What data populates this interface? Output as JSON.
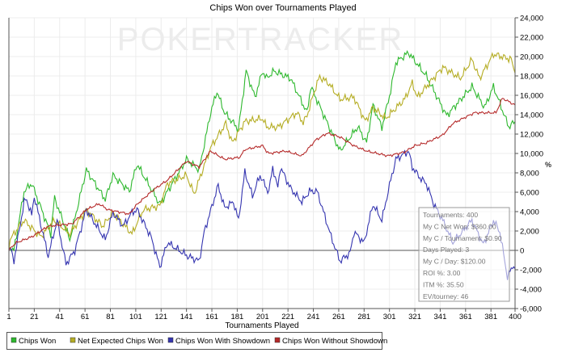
{
  "chart_data": {
    "type": "line",
    "title": "Chips Won over Tournaments Played",
    "xlabel": "Tournaments Played",
    "ylabel": "%",
    "watermark": "POKERTRACKER",
    "xlim": [
      1,
      400
    ],
    "ylim": [
      -6000,
      24000
    ],
    "x_ticks": [
      1,
      21,
      41,
      61,
      81,
      101,
      121,
      141,
      161,
      181,
      201,
      221,
      241,
      261,
      281,
      301,
      321,
      341,
      361,
      381,
      400
    ],
    "y_ticks": [
      -6000,
      -4000,
      -2000,
      0,
      2000,
      4000,
      6000,
      8000,
      10000,
      12000,
      14000,
      16000,
      18000,
      20000,
      22000,
      24000
    ],
    "y_tick_labels": [
      "-6,000",
      "-4,000",
      "-2,000",
      "0",
      "2,000",
      "4,000",
      "6,000",
      "8,000",
      "10,000",
      "12,000",
      "14,000",
      "16,000",
      "18,000",
      "20,000",
      "22,000",
      "24,000"
    ],
    "grid": true,
    "legend_position": "bottom-left",
    "series": [
      {
        "name": "Chips Won",
        "color": "#2eb82e",
        "points": [
          [
            1,
            0
          ],
          [
            2,
            250
          ],
          [
            5,
            0
          ],
          [
            13,
            6100
          ],
          [
            19,
            6900
          ],
          [
            34,
            1700
          ],
          [
            37,
            5400
          ],
          [
            49,
            1100
          ],
          [
            62,
            8300
          ],
          [
            77,
            5250
          ],
          [
            83,
            7750
          ],
          [
            96,
            6100
          ],
          [
            102,
            8900
          ],
          [
            120,
            4750
          ],
          [
            141,
            9400
          ],
          [
            151,
            8300
          ],
          [
            160,
            14200
          ],
          [
            165,
            16400
          ],
          [
            171,
            14200
          ],
          [
            182,
            12500
          ],
          [
            188,
            18500
          ],
          [
            195,
            15800
          ],
          [
            201,
            18500
          ],
          [
            204,
            17750
          ],
          [
            210,
            18500
          ],
          [
            223,
            17750
          ],
          [
            236,
            14200
          ],
          [
            239,
            16900
          ],
          [
            262,
            10250
          ],
          [
            276,
            12750
          ],
          [
            283,
            11100
          ],
          [
            288,
            15000
          ],
          [
            295,
            12660
          ],
          [
            302,
            16500
          ],
          [
            306,
            19400
          ],
          [
            316,
            20400
          ],
          [
            330,
            18000
          ],
          [
            346,
            13900
          ],
          [
            366,
            16900
          ],
          [
            376,
            14750
          ],
          [
            383,
            16900
          ],
          [
            395,
            12750
          ],
          [
            400,
            13300
          ]
        ]
      },
      {
        "name": "Net Expected Chips Won",
        "color": "#b5ad24",
        "points": [
          [
            1,
            0
          ],
          [
            2,
            1100
          ],
          [
            9,
            2500
          ],
          [
            13,
            3100
          ],
          [
            26,
            1400
          ],
          [
            37,
            3100
          ],
          [
            49,
            1700
          ],
          [
            62,
            4200
          ],
          [
            75,
            2500
          ],
          [
            83,
            3900
          ],
          [
            98,
            1700
          ],
          [
            107,
            4200
          ],
          [
            120,
            4600
          ],
          [
            126,
            6900
          ],
          [
            141,
            7750
          ],
          [
            147,
            5800
          ],
          [
            160,
            10600
          ],
          [
            172,
            13100
          ],
          [
            177,
            11100
          ],
          [
            187,
            13300
          ],
          [
            201,
            13600
          ],
          [
            204,
            12750
          ],
          [
            213,
            12700
          ],
          [
            228,
            14200
          ],
          [
            233,
            13200
          ],
          [
            236,
            13900
          ],
          [
            243,
            16900
          ],
          [
            246,
            17900
          ],
          [
            253,
            17250
          ],
          [
            262,
            15600
          ],
          [
            273,
            15800
          ],
          [
            282,
            13300
          ],
          [
            288,
            14750
          ],
          [
            298,
            13600
          ],
          [
            313,
            15600
          ],
          [
            319,
            17250
          ],
          [
            323,
            15800
          ],
          [
            343,
            18900
          ],
          [
            357,
            17750
          ],
          [
            366,
            19700
          ],
          [
            372,
            17750
          ],
          [
            383,
            20250
          ],
          [
            397,
            19700
          ],
          [
            400,
            18300
          ]
        ]
      },
      {
        "name": "Chips Won With Showdown",
        "color": "#3535b0",
        "points": [
          [
            1,
            0
          ],
          [
            2,
            250
          ],
          [
            5,
            -1100
          ],
          [
            13,
            5000
          ],
          [
            15,
            5250
          ],
          [
            19,
            3600
          ],
          [
            21,
            5600
          ],
          [
            32,
            -600
          ],
          [
            39,
            3100
          ],
          [
            46,
            -1400
          ],
          [
            53,
            0
          ],
          [
            62,
            4200
          ],
          [
            77,
            1100
          ],
          [
            83,
            3900
          ],
          [
            91,
            2500
          ],
          [
            98,
            3900
          ],
          [
            102,
            4200
          ],
          [
            113,
            1400
          ],
          [
            120,
            -1700
          ],
          [
            126,
            800
          ],
          [
            142,
            -600
          ],
          [
            151,
            -1100
          ],
          [
            155,
            1900
          ],
          [
            166,
            6700
          ],
          [
            171,
            4400
          ],
          [
            178,
            5000
          ],
          [
            182,
            3100
          ],
          [
            187,
            8100
          ],
          [
            193,
            5600
          ],
          [
            199,
            7750
          ],
          [
            204,
            6400
          ],
          [
            206,
            6100
          ],
          [
            209,
            8600
          ],
          [
            213,
            6400
          ],
          [
            215,
            8600
          ],
          [
            223,
            6400
          ],
          [
            232,
            5000
          ],
          [
            238,
            6100
          ],
          [
            244,
            6100
          ],
          [
            255,
            1400
          ],
          [
            262,
            -1100
          ],
          [
            270,
            -250
          ],
          [
            273,
            1900
          ],
          [
            281,
            800
          ],
          [
            288,
            4750
          ],
          [
            295,
            3100
          ],
          [
            301,
            6700
          ],
          [
            306,
            9400
          ],
          [
            316,
            10250
          ],
          [
            319,
            8600
          ],
          [
            325,
            7500
          ],
          [
            330,
            6900
          ],
          [
            336,
            4750
          ],
          [
            343,
            3100
          ],
          [
            351,
            800
          ],
          [
            366,
            3100
          ],
          [
            375,
            600
          ],
          [
            383,
            3100
          ],
          [
            388,
            1900
          ],
          [
            394,
            -2750
          ],
          [
            399,
            -1400
          ],
          [
            400,
            -1900
          ]
        ]
      },
      {
        "name": "Chips Won Without Showdown",
        "color": "#b52a2a",
        "points": [
          [
            1,
            0
          ],
          [
            2,
            250
          ],
          [
            7,
            800
          ],
          [
            19,
            1400
          ],
          [
            32,
            2500
          ],
          [
            51,
            2750
          ],
          [
            62,
            4200
          ],
          [
            72,
            4800
          ],
          [
            79,
            4200
          ],
          [
            96,
            3750
          ],
          [
            102,
            4750
          ],
          [
            115,
            6250
          ],
          [
            126,
            7250
          ],
          [
            141,
            9200
          ],
          [
            151,
            8600
          ],
          [
            160,
            10250
          ],
          [
            171,
            9400
          ],
          [
            183,
            9600
          ],
          [
            187,
            10400
          ],
          [
            201,
            10800
          ],
          [
            204,
            10250
          ],
          [
            206,
            10000
          ],
          [
            219,
            10250
          ],
          [
            232,
            9750
          ],
          [
            243,
            11400
          ],
          [
            252,
            12100
          ],
          [
            262,
            11700
          ],
          [
            273,
            10800
          ],
          [
            283,
            10250
          ],
          [
            300,
            9750
          ],
          [
            313,
            10150
          ],
          [
            321,
            10800
          ],
          [
            330,
            11100
          ],
          [
            343,
            11900
          ],
          [
            351,
            13100
          ],
          [
            368,
            14200
          ],
          [
            385,
            14200
          ],
          [
            390,
            15700
          ],
          [
            400,
            15000
          ]
        ]
      }
    ]
  },
  "stats_box": {
    "lines": [
      "Tournaments: 400",
      "My C Net Won: $360.00",
      "My C / Tournament: $0.90",
      "Days Played: 3",
      "My C / Day: $120.00",
      "ROI %: 3.00",
      "ITM %: 35.50",
      "EV/tourney: 46"
    ]
  }
}
